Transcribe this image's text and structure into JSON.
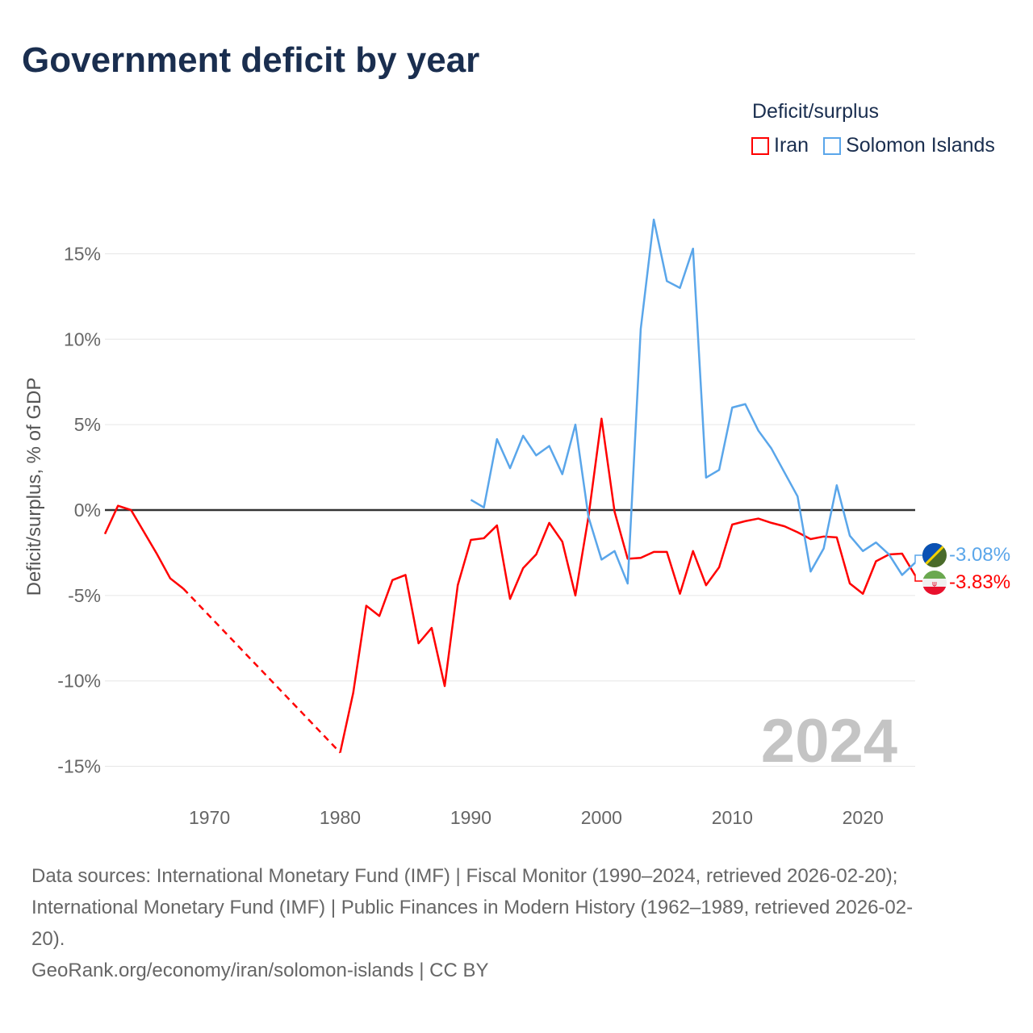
{
  "title": "Government deficit by year",
  "legend": {
    "title": "Deficit/surplus",
    "items": [
      {
        "label": "Iran",
        "color": "#ff0000"
      },
      {
        "label": "Solomon Islands",
        "color": "#5aa6ea"
      }
    ]
  },
  "year_watermark": "2024",
  "end_labels": {
    "solomon": "-3.08%",
    "iran": "-3.83%"
  },
  "footer": {
    "line1": "Data sources: International Monetary Fund (IMF) | Fiscal Monitor (1990–2024, retrieved 2026-02-20);",
    "line2": "International Monetary Fund (IMF) | Public Finances in Modern History (1962–1989, retrieved 2026-02-",
    "line3": "20).",
    "line4": "GeoRank.org/economy/iran/solomon-islands | CC BY"
  },
  "chart_data": {
    "type": "line",
    "title": "Government deficit by year",
    "xlabel": "",
    "ylabel": "Deficit/surplus, % of GDP",
    "xlim": [
      1962,
      2024
    ],
    "ylim": [
      -17,
      18
    ],
    "grid": true,
    "legend_placement": "top-right",
    "x_ticks": [
      1970,
      1980,
      1990,
      2000,
      2010,
      2020
    ],
    "y_ticks": [
      15,
      10,
      5,
      0,
      -5,
      -10,
      -15
    ],
    "y_tick_labels": [
      "15%",
      "10%",
      "5%",
      "0%",
      "-5%",
      "-10%",
      "-15%"
    ],
    "x": [
      1962,
      1963,
      1964,
      1965,
      1966,
      1967,
      1968,
      1969,
      1970,
      1971,
      1972,
      1973,
      1974,
      1975,
      1976,
      1977,
      1978,
      1979,
      1980,
      1981,
      1982,
      1983,
      1984,
      1985,
      1986,
      1987,
      1988,
      1989,
      1990,
      1991,
      1992,
      1993,
      1994,
      1995,
      1996,
      1997,
      1998,
      1999,
      2000,
      2001,
      2002,
      2003,
      2004,
      2005,
      2006,
      2007,
      2008,
      2009,
      2010,
      2011,
      2012,
      2013,
      2014,
      2015,
      2016,
      2017,
      2018,
      2019,
      2020,
      2021,
      2022,
      2023,
      2024
    ],
    "series": [
      {
        "name": "Iran",
        "color": "#ff0000",
        "values": [
          -1.4,
          0.25,
          0,
          -1.3,
          -2.6,
          -4.0,
          -4.6,
          null,
          null,
          null,
          null,
          null,
          null,
          null,
          null,
          null,
          null,
          null,
          -14.2,
          -10.7,
          -5.6,
          -6.2,
          -4.1,
          -3.8,
          -7.8,
          -6.9,
          -10.3,
          -4.4,
          -1.75,
          -1.65,
          -0.9,
          -5.2,
          -3.4,
          -2.6,
          -0.75,
          -1.85,
          -5.0,
          -0.4,
          5.35,
          -0.1,
          -2.85,
          -2.8,
          -2.45,
          -2.45,
          -4.9,
          -2.4,
          -4.4,
          -3.35,
          -0.85,
          -0.65,
          -0.5,
          -0.75,
          -0.95,
          -1.3,
          -1.7,
          -1.55,
          -1.6,
          -4.3,
          -4.9,
          -3.0,
          -2.6,
          -2.55,
          -3.83
        ]
      },
      {
        "name": "Solomon Islands",
        "color": "#5aa6ea",
        "values": [
          null,
          null,
          null,
          null,
          null,
          null,
          null,
          null,
          null,
          null,
          null,
          null,
          null,
          null,
          null,
          null,
          null,
          null,
          null,
          null,
          null,
          null,
          null,
          null,
          null,
          null,
          null,
          null,
          0.6,
          0.15,
          4.15,
          2.45,
          4.35,
          3.2,
          3.75,
          2.1,
          5.0,
          -0.4,
          -2.9,
          -2.4,
          -4.3,
          10.6,
          17.0,
          13.4,
          13.0,
          15.3,
          1.9,
          2.35,
          6.0,
          6.2,
          4.65,
          3.6,
          2.2,
          0.8,
          -3.6,
          -2.25,
          1.45,
          -1.5,
          -2.4,
          -1.9,
          -2.6,
          -3.8,
          -3.08
        ]
      }
    ]
  }
}
